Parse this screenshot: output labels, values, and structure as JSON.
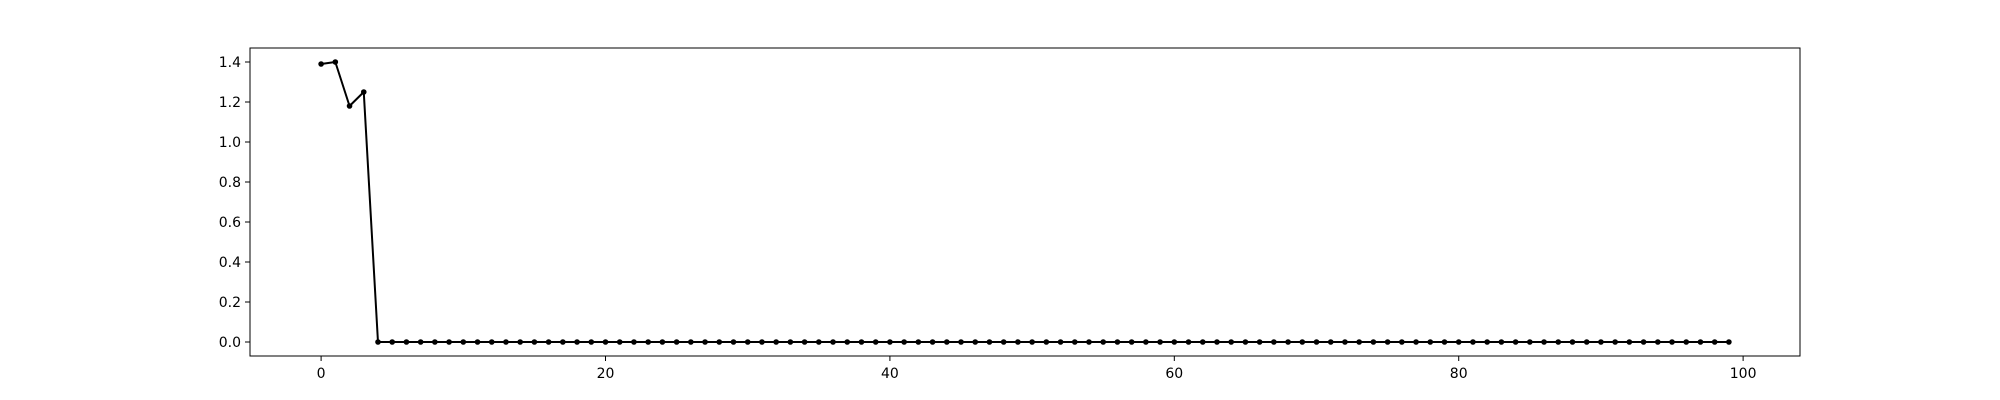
{
  "chart_data": {
    "type": "line",
    "title": "",
    "xlabel": "",
    "ylabel": "",
    "xlim": [
      -5,
      104
    ],
    "ylim": [
      -0.07,
      1.47
    ],
    "x_ticks": [
      0,
      20,
      40,
      60,
      80,
      100
    ],
    "y_ticks": [
      0.0,
      0.2,
      0.4,
      0.6,
      0.8,
      1.0,
      1.2,
      1.4
    ],
    "x_tick_labels": [
      "0",
      "20",
      "40",
      "60",
      "80",
      "100"
    ],
    "y_tick_labels": [
      "0.0",
      "0.2",
      "0.4",
      "0.6",
      "0.8",
      "1.0",
      "1.2",
      "1.4"
    ],
    "grid": false,
    "legend": false,
    "series": [
      {
        "color": "#000000",
        "marker": "circle",
        "x": [
          0,
          1,
          2,
          3,
          4,
          5,
          6,
          7,
          8,
          9,
          10,
          11,
          12,
          13,
          14,
          15,
          16,
          17,
          18,
          19,
          20,
          21,
          22,
          23,
          24,
          25,
          26,
          27,
          28,
          29,
          30,
          31,
          32,
          33,
          34,
          35,
          36,
          37,
          38,
          39,
          40,
          41,
          42,
          43,
          44,
          45,
          46,
          47,
          48,
          49,
          50,
          51,
          52,
          53,
          54,
          55,
          56,
          57,
          58,
          59,
          60,
          61,
          62,
          63,
          64,
          65,
          66,
          67,
          68,
          69,
          70,
          71,
          72,
          73,
          74,
          75,
          76,
          77,
          78,
          79,
          80,
          81,
          82,
          83,
          84,
          85,
          86,
          87,
          88,
          89,
          90,
          91,
          92,
          93,
          94,
          95,
          96,
          97,
          98,
          99
        ],
        "values": [
          1.39,
          1.4,
          1.18,
          1.25,
          0,
          0,
          0,
          0,
          0,
          0,
          0,
          0,
          0,
          0,
          0,
          0,
          0,
          0,
          0,
          0,
          0,
          0,
          0,
          0,
          0,
          0,
          0,
          0,
          0,
          0,
          0,
          0,
          0,
          0,
          0,
          0,
          0,
          0,
          0,
          0,
          0,
          0,
          0,
          0,
          0,
          0,
          0,
          0,
          0,
          0,
          0,
          0,
          0,
          0,
          0,
          0,
          0,
          0,
          0,
          0,
          0,
          0,
          0,
          0,
          0,
          0,
          0,
          0,
          0,
          0,
          0,
          0,
          0,
          0,
          0,
          0,
          0,
          0,
          0,
          0,
          0,
          0,
          0,
          0,
          0,
          0,
          0,
          0,
          0,
          0,
          0,
          0,
          0,
          0,
          0,
          0,
          0,
          0,
          0,
          0
        ]
      }
    ]
  }
}
